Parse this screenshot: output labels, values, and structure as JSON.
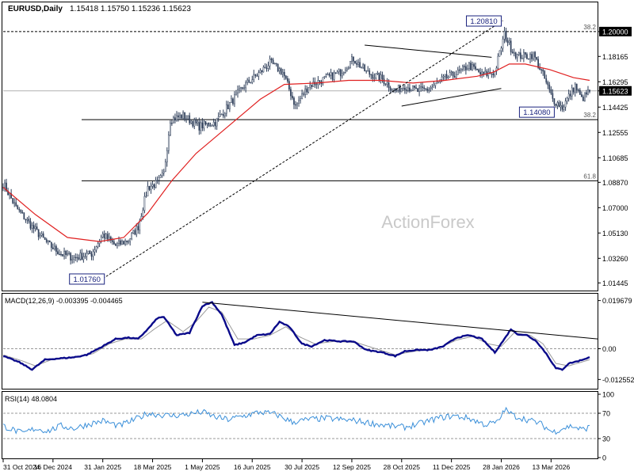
{
  "header": {
    "symbol": "EURUSD,Daily",
    "ohlc": "1.15418 1.15750 1.15236 1.15623"
  },
  "watermark": "ActionForex",
  "colors": {
    "candle": "#2f3f5a",
    "ma": "#e02020",
    "macd_main": "#0a0a8a",
    "macd_signal": "#9a9a9a",
    "rsi": "#3a8fd9",
    "trend": "#000000"
  },
  "chart_data": [
    {
      "type": "candlestick",
      "title": "EURUSD,Daily",
      "y_range": [
        1.0094,
        1.2198
      ],
      "y_ticks": [
        "1.20000",
        "1.18165",
        "1.16295",
        "1.15623",
        "1.14425",
        "1.12555",
        "1.10685",
        "1.08870",
        "1.07000",
        "1.05130",
        "1.03260",
        "1.01445"
      ],
      "x_ticks": [
        "31 Oct 2024",
        "16 Dec 2024",
        "31 Jan 2025",
        "18 Mar 2025",
        "1 May 2025",
        "16 Jun 2025",
        "30 Jul 2025",
        "12 Sep 2025",
        "28 Oct 2025",
        "11 Dec 2025",
        "28 Jan 2026",
        "13 Mar 2026"
      ],
      "x_tick_index": [
        0,
        31,
        62,
        93,
        124,
        155,
        186,
        217,
        248,
        279,
        310,
        341
      ],
      "bars": 366,
      "close_path": [
        [
          0,
          1.088
        ],
        [
          8,
          1.07
        ],
        [
          18,
          1.056
        ],
        [
          28,
          1.043
        ],
        [
          36,
          1.036
        ],
        [
          44,
          1.033
        ],
        [
          55,
          1.036
        ],
        [
          62,
          1.05
        ],
        [
          70,
          1.042
        ],
        [
          78,
          1.046
        ],
        [
          84,
          1.056
        ],
        [
          90,
          1.085
        ],
        [
          96,
          1.088
        ],
        [
          100,
          1.095
        ],
        [
          104,
          1.135
        ],
        [
          112,
          1.138
        ],
        [
          122,
          1.13
        ],
        [
          132,
          1.133
        ],
        [
          140,
          1.145
        ],
        [
          150,
          1.16
        ],
        [
          160,
          1.17
        ],
        [
          166,
          1.177
        ],
        [
          174,
          1.17
        ],
        [
          182,
          1.145
        ],
        [
          190,
          1.16
        ],
        [
          200,
          1.165
        ],
        [
          210,
          1.17
        ],
        [
          218,
          1.18
        ],
        [
          226,
          1.17
        ],
        [
          236,
          1.165
        ],
        [
          244,
          1.156
        ],
        [
          250,
          1.16
        ],
        [
          258,
          1.156
        ],
        [
          266,
          1.158
        ],
        [
          274,
          1.165
        ],
        [
          284,
          1.17
        ],
        [
          290,
          1.175
        ],
        [
          298,
          1.168
        ],
        [
          306,
          1.17
        ],
        [
          312,
          1.198
        ],
        [
          316,
          1.188
        ],
        [
          320,
          1.182
        ],
        [
          326,
          1.182
        ],
        [
          330,
          1.183
        ],
        [
          336,
          1.168
        ],
        [
          342,
          1.15
        ],
        [
          348,
          1.144
        ],
        [
          352,
          1.152
        ],
        [
          356,
          1.16
        ],
        [
          360,
          1.15
        ],
        [
          365,
          1.1562
        ]
      ],
      "ma_path": [
        [
          0,
          1.085
        ],
        [
          20,
          1.065
        ],
        [
          40,
          1.048
        ],
        [
          60,
          1.045
        ],
        [
          75,
          1.048
        ],
        [
          90,
          1.066
        ],
        [
          105,
          1.09
        ],
        [
          120,
          1.11
        ],
        [
          140,
          1.13
        ],
        [
          160,
          1.15
        ],
        [
          175,
          1.161
        ],
        [
          195,
          1.162
        ],
        [
          215,
          1.164
        ],
        [
          235,
          1.164
        ],
        [
          255,
          1.162
        ],
        [
          275,
          1.164
        ],
        [
          295,
          1.167
        ],
        [
          305,
          1.17
        ],
        [
          315,
          1.176
        ],
        [
          325,
          1.176
        ],
        [
          340,
          1.172
        ],
        [
          355,
          1.166
        ],
        [
          365,
          1.164
        ]
      ],
      "levels": [
        {
          "label": "38.2",
          "value": 1.2,
          "tag": "1.20000",
          "dashed": true
        },
        {
          "label": "38.2",
          "value": 1.135,
          "dashed": false
        },
        {
          "label": "61.8",
          "value": 1.0898,
          "dashed": false
        }
      ],
      "current_price": {
        "value": 1.15623,
        "tag": "1.15623"
      },
      "annotations": [
        {
          "text": "1.20810",
          "x": 311,
          "y": 1.2081
        },
        {
          "text": "1.14080",
          "x": 344,
          "y": 1.1408
        },
        {
          "text": "1.01760",
          "x": 62,
          "y": 1.0176
        }
      ],
      "trendlines": [
        {
          "from": [
            62,
            1.0176
          ],
          "to": [
            311,
            1.2081
          ],
          "dashed": true
        },
        {
          "from": [
            225,
            1.19
          ],
          "to": [
            304,
            1.181
          ],
          "dashed": false
        },
        {
          "from": [
            248,
            1.145
          ],
          "to": [
            310,
            1.158
          ],
          "dashed": false
        }
      ]
    },
    {
      "type": "line",
      "title": "MACD(12,26,9) -0.003395 -0.004465",
      "y_range": [
        -0.016,
        0.0215
      ],
      "y_ticks": [
        "0.019679",
        "0.00",
        "-0.012552"
      ],
      "main_path": [
        [
          0,
          -0.003
        ],
        [
          10,
          -0.0055
        ],
        [
          18,
          -0.0085
        ],
        [
          26,
          -0.0045
        ],
        [
          34,
          -0.004
        ],
        [
          44,
          -0.0035
        ],
        [
          52,
          -0.0025
        ],
        [
          62,
          0.001
        ],
        [
          70,
          0.004
        ],
        [
          78,
          0.0045
        ],
        [
          84,
          0.004
        ],
        [
          90,
          0.008
        ],
        [
          96,
          0.0125
        ],
        [
          100,
          0.013
        ],
        [
          108,
          0.0055
        ],
        [
          116,
          0.0065
        ],
        [
          124,
          0.0175
        ],
        [
          130,
          0.019
        ],
        [
          136,
          0.014
        ],
        [
          144,
          0.0015
        ],
        [
          150,
          0.0025
        ],
        [
          158,
          0.0055
        ],
        [
          166,
          0.006
        ],
        [
          172,
          0.011
        ],
        [
          178,
          0.009
        ],
        [
          186,
          0.002
        ],
        [
          192,
          0.001
        ],
        [
          200,
          0.0035
        ],
        [
          210,
          0.003
        ],
        [
          218,
          0.003
        ],
        [
          226,
          -0.0005
        ],
        [
          236,
          -0.0015
        ],
        [
          244,
          -0.003
        ],
        [
          250,
          -0.001
        ],
        [
          258,
          -0.0005
        ],
        [
          266,
          -0.0005
        ],
        [
          274,
          0.001
        ],
        [
          282,
          0.0045
        ],
        [
          290,
          0.0055
        ],
        [
          298,
          0.004
        ],
        [
          306,
          -0.0015
        ],
        [
          312,
          0.004
        ],
        [
          316,
          0.008
        ],
        [
          320,
          0.006
        ],
        [
          326,
          0.0055
        ],
        [
          332,
          0.003
        ],
        [
          338,
          -0.002
        ],
        [
          344,
          -0.008
        ],
        [
          348,
          -0.0085
        ],
        [
          352,
          -0.006
        ],
        [
          358,
          -0.005
        ],
        [
          365,
          -0.0035
        ]
      ],
      "signal_path": [
        [
          0,
          -0.0025
        ],
        [
          12,
          -0.005
        ],
        [
          20,
          -0.007
        ],
        [
          30,
          -0.0045
        ],
        [
          44,
          -0.0035
        ],
        [
          56,
          -0.002
        ],
        [
          66,
          0.002
        ],
        [
          76,
          0.004
        ],
        [
          86,
          0.004
        ],
        [
          94,
          0.008
        ],
        [
          102,
          0.0115
        ],
        [
          112,
          0.007
        ],
        [
          120,
          0.011
        ],
        [
          128,
          0.017
        ],
        [
          136,
          0.015
        ],
        [
          146,
          0.004
        ],
        [
          156,
          0.004
        ],
        [
          166,
          0.0055
        ],
        [
          176,
          0.009
        ],
        [
          184,
          0.005
        ],
        [
          194,
          0.002
        ],
        [
          206,
          0.003
        ],
        [
          220,
          0.0025
        ],
        [
          232,
          0.0
        ],
        [
          244,
          -0.0025
        ],
        [
          256,
          -0.001
        ],
        [
          270,
          0.0
        ],
        [
          282,
          0.0035
        ],
        [
          292,
          0.005
        ],
        [
          302,
          0.002
        ],
        [
          310,
          0.001
        ],
        [
          318,
          0.0065
        ],
        [
          328,
          0.0055
        ],
        [
          336,
          0.002
        ],
        [
          344,
          -0.006
        ],
        [
          352,
          -0.007
        ],
        [
          365,
          -0.0045
        ]
      ],
      "trendline": {
        "from": [
          124,
          0.019
        ],
        "to": [
          365,
          0.004
        ]
      }
    },
    {
      "type": "line",
      "title": "RSI(14) 48.0804",
      "y_range": [
        0,
        100
      ],
      "y_ticks": [
        "100",
        "70",
        "30",
        "0"
      ],
      "levels": [
        70,
        30
      ],
      "values_path": [
        [
          0,
          50
        ],
        [
          6,
          44
        ],
        [
          12,
          38
        ],
        [
          20,
          46
        ],
        [
          28,
          42
        ],
        [
          36,
          50
        ],
        [
          44,
          46
        ],
        [
          52,
          52
        ],
        [
          62,
          58
        ],
        [
          72,
          50
        ],
        [
          82,
          60
        ],
        [
          90,
          70
        ],
        [
          96,
          68
        ],
        [
          104,
          66
        ],
        [
          114,
          68
        ],
        [
          124,
          72
        ],
        [
          132,
          64
        ],
        [
          140,
          60
        ],
        [
          150,
          66
        ],
        [
          160,
          72
        ],
        [
          170,
          68
        ],
        [
          180,
          56
        ],
        [
          190,
          60
        ],
        [
          200,
          62
        ],
        [
          210,
          60
        ],
        [
          220,
          58
        ],
        [
          230,
          54
        ],
        [
          240,
          50
        ],
        [
          250,
          48
        ],
        [
          260,
          54
        ],
        [
          270,
          62
        ],
        [
          280,
          66
        ],
        [
          290,
          62
        ],
        [
          300,
          52
        ],
        [
          308,
          56
        ],
        [
          312,
          76
        ],
        [
          318,
          66
        ],
        [
          326,
          60
        ],
        [
          334,
          54
        ],
        [
          342,
          40
        ],
        [
          348,
          46
        ],
        [
          354,
          50
        ],
        [
          360,
          44
        ],
        [
          365,
          48
        ]
      ]
    }
  ]
}
